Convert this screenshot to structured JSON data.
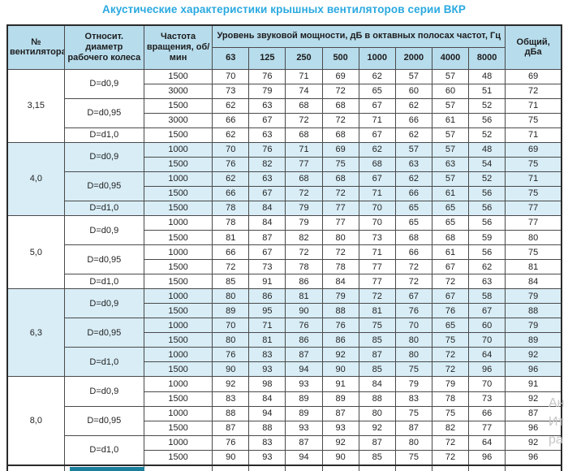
{
  "title": "Акустические характеристики крышных вентиляторов серии ВКР",
  "colors": {
    "title_accent": "#2aa9e0",
    "header_bg": "#b7dcec",
    "shaded_row_bg": "#d8edf6",
    "border": "#4a4a4a",
    "artifact_teal": "#1b7f9e"
  },
  "watermark": {
    "fragments": [
      "Ан",
      "Ит",
      "ра"
    ]
  },
  "table": {
    "headers": {
      "fan": "№ вентилятора",
      "diameter": "Относит. диаметр рабочего колеса",
      "speed": "Частота вращения, об/мин",
      "spl_group": "Уровень звуковой мощности, дБ в октавных полосах частот, Гц",
      "frequencies": [
        "63",
        "125",
        "250",
        "500",
        "1000",
        "2000",
        "4000",
        "8000"
      ],
      "total": "Общий, дБа"
    },
    "blocks": [
      {
        "fan": "3,15",
        "shaded": false,
        "groups": [
          {
            "diameter": "D=d0,9",
            "rows": [
              {
                "speed": "1500",
                "values": [
                  70,
                  76,
                  71,
                  69,
                  62,
                  57,
                  57,
                  48
                ],
                "total": 69
              },
              {
                "speed": "3000",
                "values": [
                  73,
                  79,
                  74,
                  72,
                  65,
                  60,
                  60,
                  51
                ],
                "total": 72
              }
            ]
          },
          {
            "diameter": "D=d0,95",
            "rows": [
              {
                "speed": "1500",
                "values": [
                  62,
                  63,
                  68,
                  68,
                  67,
                  62,
                  57,
                  52
                ],
                "total": 71
              },
              {
                "speed": "3000",
                "values": [
                  66,
                  67,
                  72,
                  72,
                  71,
                  66,
                  61,
                  56
                ],
                "total": 75
              }
            ]
          },
          {
            "diameter": "D=d1,0",
            "rows": [
              {
                "speed": "1500",
                "values": [
                  62,
                  63,
                  68,
                  68,
                  67,
                  62,
                  57,
                  52
                ],
                "total": 71
              }
            ]
          }
        ]
      },
      {
        "fan": "4,0",
        "shaded": true,
        "groups": [
          {
            "diameter": "D=d0,9",
            "rows": [
              {
                "speed": "1000",
                "values": [
                  70,
                  76,
                  71,
                  69,
                  62,
                  57,
                  57,
                  48
                ],
                "total": 69
              },
              {
                "speed": "1500",
                "values": [
                  76,
                  82,
                  77,
                  75,
                  68,
                  63,
                  63,
                  54
                ],
                "total": 75
              }
            ]
          },
          {
            "diameter": "D=d0,95",
            "rows": [
              {
                "speed": "1000",
                "values": [
                  62,
                  63,
                  68,
                  68,
                  67,
                  62,
                  57,
                  52
                ],
                "total": 71
              },
              {
                "speed": "1500",
                "values": [
                  66,
                  67,
                  72,
                  72,
                  71,
                  66,
                  61,
                  56
                ],
                "total": 75
              }
            ]
          },
          {
            "diameter": "D=d1,0",
            "rows": [
              {
                "speed": "1500",
                "values": [
                  78,
                  84,
                  79,
                  77,
                  70,
                  65,
                  65,
                  56
                ],
                "total": 77
              }
            ]
          }
        ]
      },
      {
        "fan": "5,0",
        "shaded": false,
        "groups": [
          {
            "diameter": "D=d0,9",
            "rows": [
              {
                "speed": "1000",
                "values": [
                  78,
                  84,
                  79,
                  77,
                  70,
                  65,
                  65,
                  56
                ],
                "total": 77
              },
              {
                "speed": "1500",
                "values": [
                  81,
                  87,
                  82,
                  80,
                  73,
                  68,
                  68,
                  59
                ],
                "total": 80
              }
            ]
          },
          {
            "diameter": "D=d0,95",
            "rows": [
              {
                "speed": "1000",
                "values": [
                  66,
                  67,
                  72,
                  72,
                  71,
                  66,
                  61,
                  56
                ],
                "total": 75
              },
              {
                "speed": "1500",
                "values": [
                  72,
                  73,
                  78,
                  78,
                  77,
                  72,
                  67,
                  62
                ],
                "total": 81
              }
            ]
          },
          {
            "diameter": "D=d1,0",
            "rows": [
              {
                "speed": "1500",
                "values": [
                  85,
                  91,
                  86,
                  84,
                  77,
                  72,
                  72,
                  63
                ],
                "total": 84
              }
            ]
          }
        ]
      },
      {
        "fan": "6,3",
        "shaded": true,
        "groups": [
          {
            "diameter": "D=d0,9",
            "rows": [
              {
                "speed": "1000",
                "values": [
                  80,
                  86,
                  81,
                  79,
                  72,
                  67,
                  67,
                  58
                ],
                "total": 79
              },
              {
                "speed": "1500",
                "values": [
                  89,
                  95,
                  90,
                  88,
                  81,
                  76,
                  76,
                  67
                ],
                "total": 88
              }
            ]
          },
          {
            "diameter": "D=d0,95",
            "rows": [
              {
                "speed": "1000",
                "values": [
                  70,
                  71,
                  76,
                  76,
                  75,
                  70,
                  65,
                  60
                ],
                "total": 79
              },
              {
                "speed": "1500",
                "values": [
                  80,
                  81,
                  86,
                  86,
                  85,
                  80,
                  75,
                  70
                ],
                "total": 89
              }
            ]
          },
          {
            "diameter": "D=d1,0",
            "rows": [
              {
                "speed": "1000",
                "values": [
                  76,
                  83,
                  87,
                  92,
                  87,
                  80,
                  72,
                  64
                ],
                "total": 92
              },
              {
                "speed": "1500",
                "values": [
                  90,
                  93,
                  94,
                  90,
                  85,
                  75,
                  72,
                  96
                ],
                "total": 96
              }
            ]
          }
        ]
      },
      {
        "fan": "8,0",
        "shaded": false,
        "groups": [
          {
            "diameter": "D=d0,9",
            "rows": [
              {
                "speed": "1000",
                "values": [
                  92,
                  98,
                  93,
                  91,
                  84,
                  79,
                  79,
                  70
                ],
                "total": 91
              },
              {
                "speed": "1500",
                "values": [
                  83,
                  84,
                  89,
                  89,
                  88,
                  83,
                  78,
                  73
                ],
                "total": 92
              }
            ]
          },
          {
            "diameter": "D=d0,95",
            "rows": [
              {
                "speed": "1000",
                "values": [
                  88,
                  94,
                  89,
                  87,
                  80,
                  75,
                  75,
                  66
                ],
                "total": 87
              },
              {
                "speed": "1500",
                "values": [
                  87,
                  88,
                  93,
                  93,
                  92,
                  87,
                  82,
                  77
                ],
                "total": 96
              }
            ]
          },
          {
            "diameter": "D=d1,0",
            "rows": [
              {
                "speed": "1000",
                "values": [
                  76,
                  83,
                  87,
                  92,
                  87,
                  80,
                  72,
                  64
                ],
                "total": 92
              },
              {
                "speed": "1500",
                "values": [
                  90,
                  93,
                  94,
                  90,
                  85,
                  75,
                  72,
                  96
                ],
                "total": 96
              }
            ]
          }
        ]
      }
    ]
  }
}
